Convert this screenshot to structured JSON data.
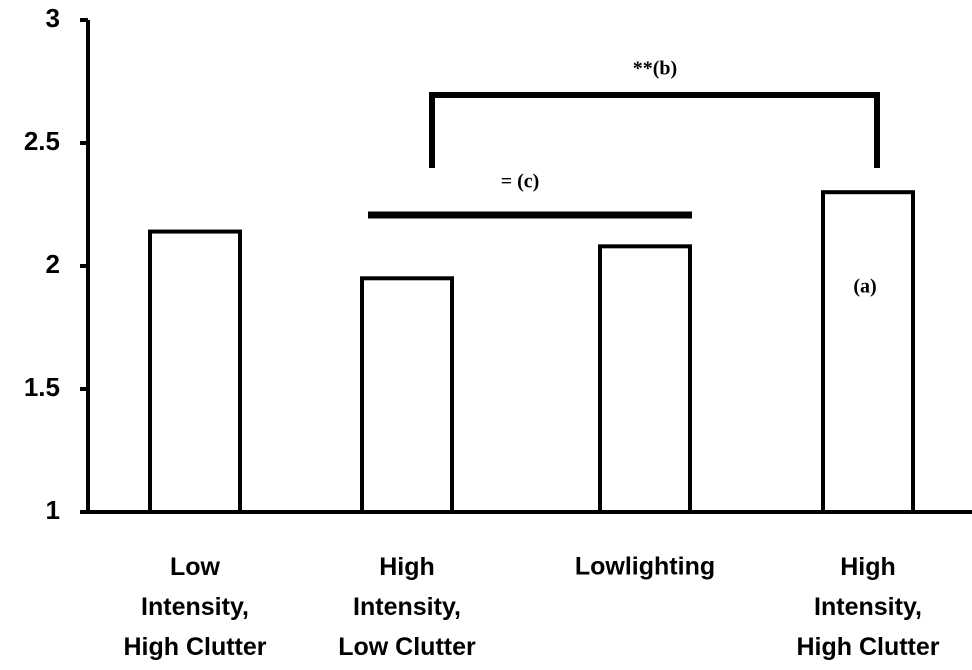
{
  "chart_data": {
    "type": "bar",
    "categories": [
      "Low\nIntensity,\nHigh Clutter",
      "High\nIntensity,\nLow Clutter",
      "Lowlighting",
      "High\nIntensity,\nHigh Clutter"
    ],
    "values": [
      2.14,
      1.95,
      2.08,
      2.3
    ],
    "color": "#ffffff",
    "ylim": [
      1,
      3
    ],
    "yticks": [
      1,
      1.5,
      2,
      2.5,
      3
    ],
    "annotations": [
      "**(b)",
      "= (c)",
      "(a)"
    ]
  }
}
